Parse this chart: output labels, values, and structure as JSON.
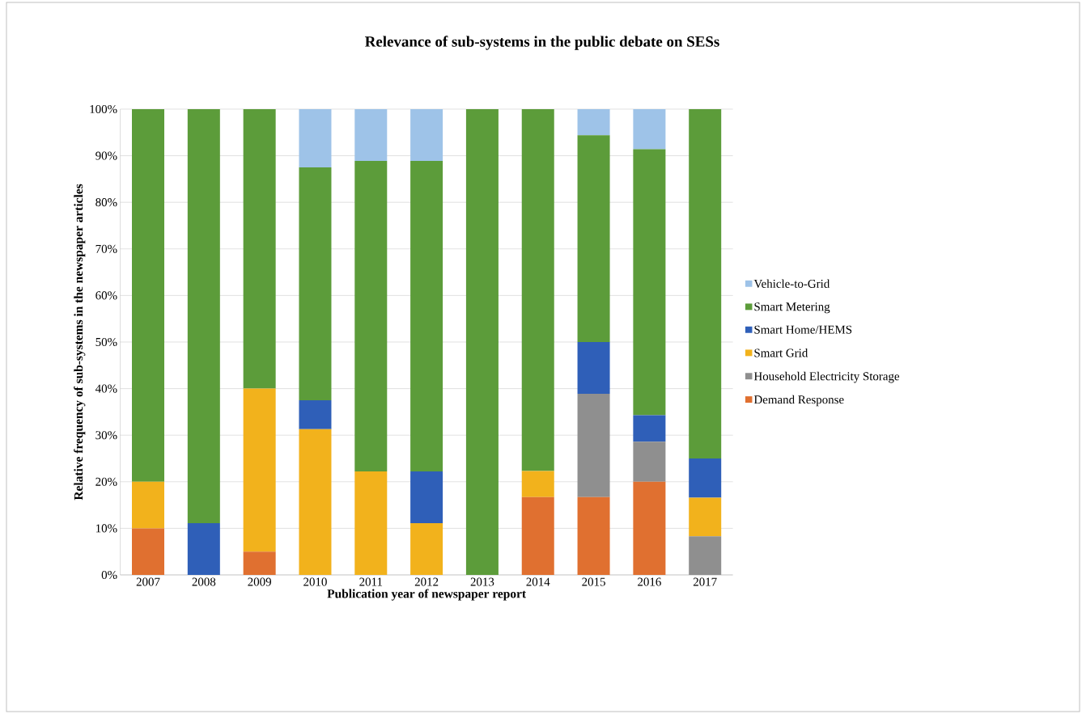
{
  "chart_data": {
    "type": "bar",
    "stacked": true,
    "title": "Relevance of sub-systems in the public debate on SESs",
    "xlabel": "Publication year of newspaper report",
    "ylabel": "Relative frequency of sub-systems in the newspaper articles",
    "categories": [
      "2007",
      "2008",
      "2009",
      "2010",
      "2011",
      "2012",
      "2013",
      "2014",
      "2015",
      "2016",
      "2017"
    ],
    "series": [
      {
        "name": "Demand Response",
        "color": "#e07030",
        "values": [
          10,
          0,
          5,
          0,
          0,
          0,
          0,
          16.7,
          16.7,
          20,
          0
        ]
      },
      {
        "name": "Household Electricity Storage",
        "color": "#8f8f8f",
        "values": [
          0,
          0,
          0,
          0,
          0,
          0,
          0,
          0,
          22.2,
          8.6,
          8.3
        ]
      },
      {
        "name": "Smart Grid",
        "color": "#f2b21c",
        "values": [
          10,
          0,
          35,
          31.3,
          22.2,
          11.1,
          0,
          5.6,
          0,
          0,
          8.3
        ]
      },
      {
        "name": "Smart Home/HEMS",
        "color": "#2f5fb8",
        "values": [
          0,
          11.1,
          0,
          6.2,
          0,
          11.1,
          0,
          0,
          11.1,
          5.7,
          8.4
        ]
      },
      {
        "name": "Smart Metering",
        "color": "#5c9c3a",
        "values": [
          80,
          88.9,
          60,
          50,
          66.7,
          66.7,
          100,
          77.7,
          44.4,
          57.1,
          75
        ]
      },
      {
        "name": "Vehicle-to-Grid",
        "color": "#9ec3e8",
        "values": [
          0,
          0,
          0,
          12.5,
          11.1,
          11.1,
          0,
          0,
          5.6,
          8.6,
          0
        ]
      }
    ],
    "ylim": [
      0,
      100
    ],
    "yticks": [
      {
        "value": 0,
        "label": "0%"
      },
      {
        "value": 10,
        "label": "10%"
      },
      {
        "value": 20,
        "label": "20%"
      },
      {
        "value": 30,
        "label": "30%"
      },
      {
        "value": 40,
        "label": "40%"
      },
      {
        "value": 50,
        "label": "50%"
      },
      {
        "value": 60,
        "label": "60%"
      },
      {
        "value": 70,
        "label": "70%"
      },
      {
        "value": 80,
        "label": "80%"
      },
      {
        "value": 90,
        "label": "90%"
      },
      {
        "value": 100,
        "label": "100%"
      }
    ],
    "grid": "y",
    "legend": "right"
  }
}
